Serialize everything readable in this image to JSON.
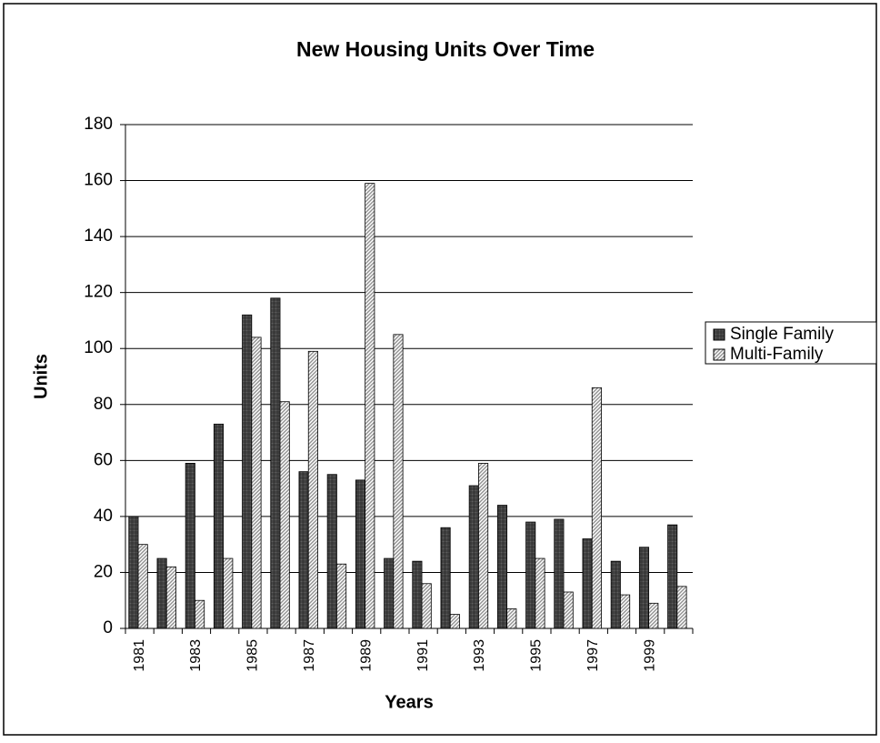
{
  "chart_data": {
    "type": "bar",
    "title": "New Housing Units Over Time",
    "x_label": "Years",
    "y_label": "Units",
    "categories": [
      "1981",
      null,
      "1983",
      null,
      "1985",
      null,
      "1987",
      null,
      "1989",
      null,
      "1991",
      null,
      "1993",
      null,
      "1995",
      null,
      "1997",
      null,
      "1999",
      null
    ],
    "series": [
      {
        "name": "Single Family",
        "color": "#606060",
        "values": [
          40,
          25,
          59,
          73,
          112,
          118,
          56,
          55,
          53,
          25,
          24,
          36,
          51,
          44,
          38,
          39,
          32,
          24,
          29,
          37
        ]
      },
      {
        "name": "Multi-Family",
        "color": "#909090",
        "values": [
          30,
          22,
          10,
          25,
          104,
          81,
          99,
          23,
          159,
          105,
          16,
          5,
          59,
          7,
          25,
          13,
          86,
          12,
          9,
          15
        ]
      }
    ],
    "ylim": [
      0,
      180
    ],
    "yticks": [
      0,
      20,
      40,
      60,
      80,
      100,
      120,
      140,
      160,
      180
    ],
    "grid": true,
    "legend": "right"
  }
}
